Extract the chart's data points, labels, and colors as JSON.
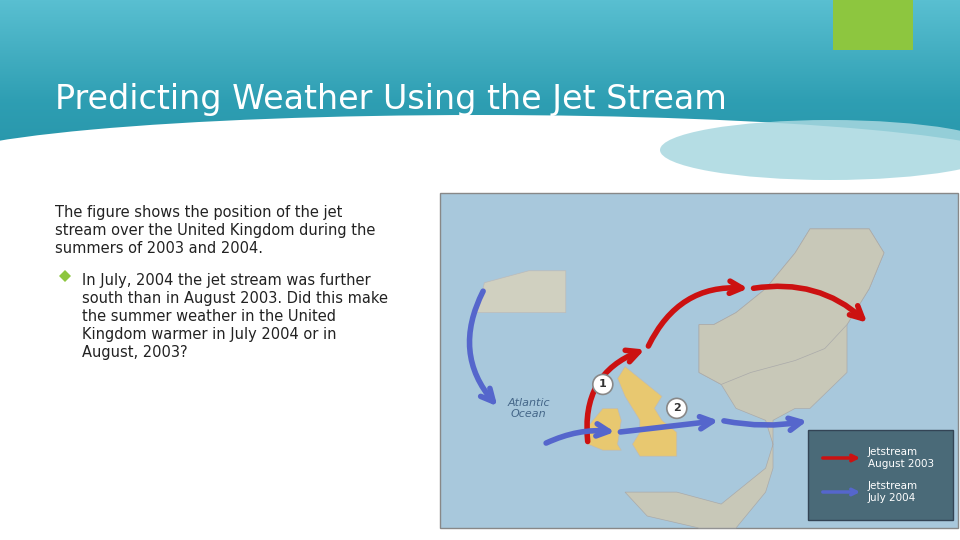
{
  "title": "Predicting Weather Using the Jet Stream",
  "bg_color": "#ffffff",
  "green_accent": "#8dc63f",
  "body_text_line1": "The figure shows the position of the jet",
  "body_text_line2": "stream over the United Kingdom during the",
  "body_text_line3": "summers of 2003 and 2004.",
  "bullet_diamond_color": "#8dc63f",
  "bullet_text_line1": "In July, 2004 the jet stream was further",
  "bullet_text_line2": "south than in August 2003. Did this make",
  "bullet_text_line3": "the summer weather in the United",
  "bullet_text_line4": "Kingdom warmer in July 2004 or in",
  "bullet_text_line5": "August, 2003?",
  "title_color": "#ffffff",
  "body_text_color": "#222222",
  "header_top_color": "#5bbfcc",
  "header_mid_color": "#2a9aaa",
  "header_bot_color": "#1a8898",
  "ocean_color": "#a8c8dc",
  "land_color": "#c8c8b8",
  "uk_color": "#e8c870",
  "legend_bg": "#4a6a78",
  "arrow_red": "#cc1111",
  "arrow_blue": "#5566cc"
}
